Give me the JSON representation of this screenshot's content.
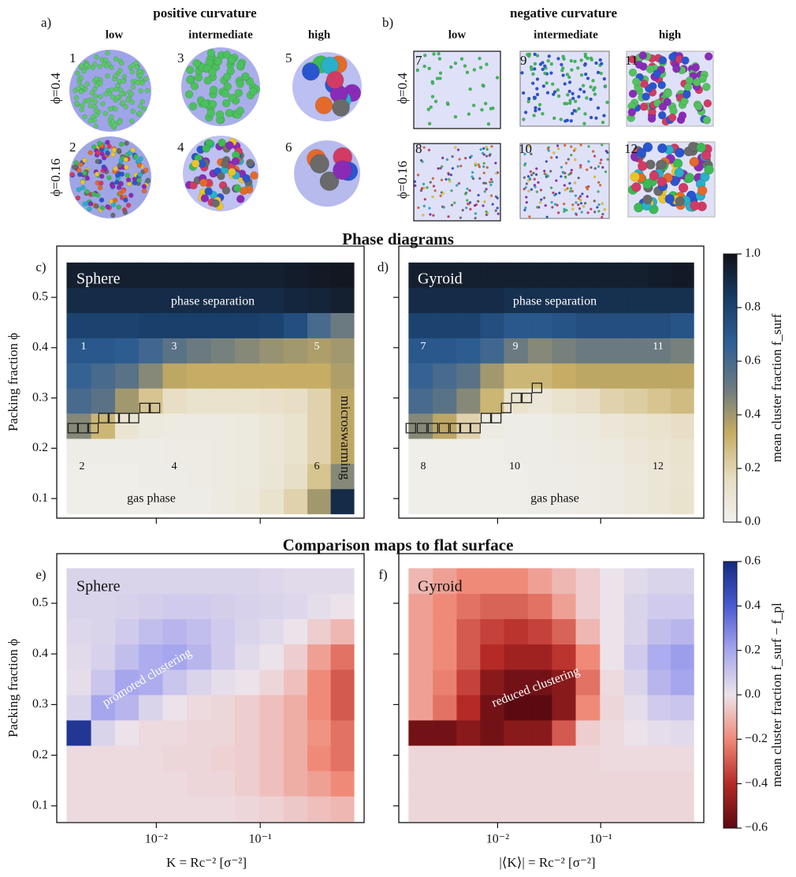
{
  "sections": [
    "Phase diagrams",
    "Comparison maps to flat surface"
  ],
  "illustrations": {
    "a": {
      "label": "a)",
      "title": "positive curvature",
      "columns": [
        "low",
        "intermediate",
        "high"
      ],
      "rows": [
        "ϕ=0.4",
        "ϕ=0.16"
      ],
      "numbers": [
        "1",
        "2",
        "3",
        "4",
        "5",
        "6"
      ]
    },
    "b": {
      "label": "b)",
      "title": "negative curvature",
      "columns": [
        "low",
        "intermediate",
        "high"
      ],
      "rows": [
        "ϕ=0.4",
        "ϕ=0.16"
      ],
      "numbers": [
        "7",
        "8",
        "9",
        "10",
        "11",
        "12"
      ]
    }
  },
  "chart_data": [
    {
      "type": "heatmap",
      "panel": "c)",
      "xscale": "log",
      "xtick_labels": false,
      "annotations": [
        "Sphere",
        "phase separation",
        "1",
        "3",
        "5",
        "2",
        "4",
        "6",
        "gas phase",
        "microswarming"
      ],
      "ylabel": "Packing fraction ϕ",
      "xlim": [
        0.0011,
        1.0
      ],
      "ylim": [
        0.061,
        0.602
      ],
      "xticks": [
        {
          "value": 0.01,
          "label": "10⁻²"
        },
        {
          "value": 0.1,
          "label": "10⁻¹"
        }
      ],
      "yticks": [
        0.1,
        0.2,
        0.3,
        0.4,
        0.5
      ],
      "x": [
        0.0018,
        0.0031,
        0.0052,
        0.0089,
        0.015,
        0.026,
        0.044,
        0.075,
        0.13,
        0.22,
        0.37,
        0.62
      ],
      "y": [
        0.094,
        0.144,
        0.194,
        0.244,
        0.294,
        0.344,
        0.394,
        0.444,
        0.494,
        0.544
      ],
      "values": [
        [
          0.02,
          0.02,
          0.02,
          0.02,
          0.03,
          0.03,
          0.05,
          0.07,
          0.12,
          0.2,
          0.4,
          0.9
        ],
        [
          0.02,
          0.02,
          0.02,
          0.03,
          0.03,
          0.04,
          0.05,
          0.06,
          0.09,
          0.14,
          0.25,
          0.45
        ],
        [
          0.03,
          0.03,
          0.03,
          0.03,
          0.04,
          0.04,
          0.05,
          0.06,
          0.08,
          0.12,
          0.2,
          0.35
        ],
        [
          0.45,
          0.3,
          0.1,
          0.06,
          0.05,
          0.05,
          0.05,
          0.06,
          0.08,
          0.12,
          0.2,
          0.35
        ],
        [
          0.6,
          0.55,
          0.4,
          0.25,
          0.15,
          0.12,
          0.12,
          0.12,
          0.13,
          0.15,
          0.2,
          0.35
        ],
        [
          0.65,
          0.6,
          0.55,
          0.45,
          0.35,
          0.33,
          0.33,
          0.33,
          0.33,
          0.33,
          0.33,
          0.38
        ],
        [
          0.7,
          0.7,
          0.68,
          0.62,
          0.55,
          0.5,
          0.48,
          0.45,
          0.42,
          0.4,
          0.38,
          0.4
        ],
        [
          0.8,
          0.8,
          0.8,
          0.82,
          0.82,
          0.82,
          0.82,
          0.82,
          0.8,
          0.75,
          0.6,
          0.5
        ],
        [
          0.9,
          0.9,
          0.9,
          0.9,
          0.9,
          0.9,
          0.9,
          0.9,
          0.9,
          0.92,
          0.93,
          0.95
        ],
        [
          0.95,
          0.95,
          0.95,
          0.95,
          0.95,
          0.95,
          0.95,
          0.95,
          0.95,
          0.96,
          0.97,
          0.98
        ]
      ],
      "clim": [
        0,
        1
      ],
      "colormap": [
        "#f0f0ef",
        "#e6dcc0",
        "#c6ac62",
        "#6b7a80",
        "#2f5f95",
        "#173c66",
        "#121218"
      ],
      "boundary": {
        "x": [
          0.00157,
          0.00197,
          0.00248,
          0.0031,
          0.0039,
          0.0049,
          0.0061,
          0.0077,
          0.0097
        ],
        "y": [
          0.24,
          0.24,
          0.24,
          0.26,
          0.26,
          0.26,
          0.26,
          0.28,
          0.28
        ]
      },
      "colorbar": {
        "label": "mean cluster fraction f_surf",
        "ticks": [
          {
            "value": 0,
            "label": "0.0"
          },
          0.2,
          0.4,
          0.6,
          0.8,
          {
            "value": 1,
            "label": "1.0"
          }
        ]
      }
    },
    {
      "type": "heatmap",
      "panel": "d)",
      "xscale": "log",
      "xtick_labels": false,
      "ytick_labels": false,
      "annotations": [
        "Gyroid",
        "phase separation",
        "7",
        "9",
        "11",
        "8",
        "10",
        "12",
        "gas phase"
      ],
      "xlim": [
        0.0011,
        1.0
      ],
      "ylim": [
        0.061,
        0.602
      ],
      "xticks": [
        {
          "value": 0.01,
          "label": "10⁻²"
        },
        {
          "value": 0.1,
          "label": "10⁻¹"
        }
      ],
      "yticks": [
        0.1,
        0.2,
        0.3,
        0.4,
        0.5
      ],
      "x": [
        0.0018,
        0.0031,
        0.0052,
        0.0089,
        0.015,
        0.026,
        0.044,
        0.075,
        0.13,
        0.22,
        0.37,
        0.62
      ],
      "y": [
        0.094,
        0.144,
        0.194,
        0.244,
        0.294,
        0.344,
        0.394,
        0.444,
        0.494,
        0.544
      ],
      "values": [
        [
          0.02,
          0.02,
          0.02,
          0.02,
          0.02,
          0.03,
          0.03,
          0.04,
          0.05,
          0.07,
          0.09,
          0.12
        ],
        [
          0.02,
          0.02,
          0.02,
          0.02,
          0.02,
          0.03,
          0.03,
          0.04,
          0.05,
          0.07,
          0.09,
          0.11
        ],
        [
          0.02,
          0.02,
          0.02,
          0.02,
          0.03,
          0.03,
          0.04,
          0.05,
          0.06,
          0.08,
          0.1,
          0.12
        ],
        [
          0.45,
          0.35,
          0.2,
          0.05,
          0.03,
          0.03,
          0.05,
          0.06,
          0.08,
          0.1,
          0.12,
          0.15
        ],
        [
          0.6,
          0.55,
          0.45,
          0.3,
          0.12,
          0.08,
          0.12,
          0.15,
          0.2,
          0.22,
          0.25,
          0.28
        ],
        [
          0.65,
          0.6,
          0.55,
          0.4,
          0.3,
          0.3,
          0.33,
          0.35,
          0.35,
          0.35,
          0.35,
          0.35
        ],
        [
          0.7,
          0.7,
          0.68,
          0.62,
          0.5,
          0.45,
          0.48,
          0.5,
          0.5,
          0.5,
          0.5,
          0.48
        ],
        [
          0.8,
          0.8,
          0.8,
          0.75,
          0.7,
          0.7,
          0.72,
          0.75,
          0.75,
          0.75,
          0.75,
          0.72
        ],
        [
          0.9,
          0.9,
          0.9,
          0.9,
          0.88,
          0.88,
          0.88,
          0.88,
          0.88,
          0.88,
          0.88,
          0.88
        ],
        [
          0.95,
          0.95,
          0.95,
          0.95,
          0.95,
          0.95,
          0.95,
          0.95,
          0.95,
          0.95,
          0.96,
          0.97
        ]
      ],
      "clim": [
        0,
        1
      ],
      "colormap": [
        "#f0f0ef",
        "#e6dcc0",
        "#c6ac62",
        "#6b7a80",
        "#2f5f95",
        "#173c66",
        "#121218"
      ],
      "boundary": {
        "x": [
          0.00144,
          0.00185,
          0.00236,
          0.00302,
          0.00386,
          0.00486,
          0.0061,
          0.0077,
          0.0097,
          0.0121,
          0.0152,
          0.0192,
          0.0241
        ],
        "y": [
          0.24,
          0.24,
          0.24,
          0.24,
          0.24,
          0.24,
          0.24,
          0.26,
          0.26,
          0.28,
          0.3,
          0.3,
          0.32
        ]
      }
    },
    {
      "type": "heatmap",
      "panel": "e)",
      "xscale": "log",
      "annotations": [
        "Sphere",
        "promoted clustering"
      ],
      "ylabel": "Packing fraction ϕ",
      "xlabel": "K = Rc⁻² [σ⁻²]",
      "xlim": [
        0.0011,
        1.0
      ],
      "ylim": [
        0.067,
        0.598
      ],
      "xticks": [
        {
          "value": 0.01,
          "label": "10⁻²"
        },
        {
          "value": 0.1,
          "label": "10⁻¹"
        }
      ],
      "yticks": [
        0.1,
        0.2,
        0.3,
        0.4,
        0.5
      ],
      "x": [
        0.0018,
        0.0031,
        0.0052,
        0.0089,
        0.015,
        0.026,
        0.044,
        0.075,
        0.13,
        0.22,
        0.37,
        0.62
      ],
      "y": [
        0.094,
        0.144,
        0.194,
        0.244,
        0.294,
        0.344,
        0.394,
        0.444,
        0.494,
        0.544
      ],
      "values": [
        [
          -0.02,
          -0.02,
          -0.02,
          -0.02,
          -0.02,
          -0.02,
          -0.02,
          -0.03,
          -0.04,
          -0.06,
          -0.08,
          -0.1
        ],
        [
          -0.02,
          -0.02,
          -0.02,
          -0.02,
          -0.02,
          -0.03,
          -0.03,
          -0.05,
          -0.08,
          -0.12,
          -0.15,
          -0.2
        ],
        [
          -0.02,
          -0.02,
          -0.02,
          -0.02,
          -0.03,
          -0.03,
          -0.04,
          -0.05,
          -0.08,
          -0.12,
          -0.2,
          -0.25
        ],
        [
          0.55,
          0.05,
          0.0,
          -0.02,
          -0.02,
          -0.03,
          -0.03,
          -0.05,
          -0.08,
          -0.12,
          -0.18,
          -0.25
        ],
        [
          0.05,
          0.2,
          0.15,
          0.05,
          0.0,
          -0.02,
          -0.03,
          -0.05,
          -0.08,
          -0.12,
          -0.2,
          -0.3
        ],
        [
          0.02,
          0.1,
          0.2,
          0.18,
          0.1,
          0.05,
          0.02,
          0.0,
          -0.03,
          -0.08,
          -0.2,
          -0.3
        ],
        [
          0.03,
          0.06,
          0.12,
          0.18,
          0.2,
          0.15,
          0.08,
          0.03,
          0.0,
          -0.05,
          -0.15,
          -0.25
        ],
        [
          0.04,
          0.05,
          0.08,
          0.12,
          0.15,
          0.12,
          0.08,
          0.05,
          0.03,
          0.0,
          -0.05,
          -0.1
        ],
        [
          0.05,
          0.05,
          0.06,
          0.07,
          0.08,
          0.08,
          0.07,
          0.06,
          0.05,
          0.04,
          0.02,
          0.0
        ],
        [
          0.05,
          0.05,
          0.05,
          0.05,
          0.05,
          0.05,
          0.05,
          0.05,
          0.04,
          0.03,
          0.03,
          0.03
        ]
      ],
      "clim": [
        -0.6,
        0.6
      ],
      "colormap": [
        "#5c0a12",
        "#b52a26",
        "#f08a78",
        "#ece3ea",
        "#a6a6ee",
        "#4a5ad0",
        "#142a80"
      ],
      "colorbar": {
        "label": "mean cluster fraction f_surf − f_pl",
        "ticks": [
          {
            "value": -0.6,
            "label": "−0.6"
          },
          {
            "value": -0.4,
            "label": "−0.4"
          },
          {
            "value": -0.2,
            "label": "−0.2"
          },
          {
            "value": 0,
            "label": "0.0"
          },
          0.2,
          0.4,
          0.6
        ]
      }
    },
    {
      "type": "heatmap",
      "panel": "f)",
      "xscale": "log",
      "ytick_labels": false,
      "annotations": [
        "Gyroid",
        "reduced clustering"
      ],
      "xlabel": "|⟨K⟩| = Rc⁻² [σ⁻²]",
      "xlim": [
        0.0011,
        1.0
      ],
      "ylim": [
        0.067,
        0.598
      ],
      "xticks": [
        {
          "value": 0.01,
          "label": "10⁻²"
        },
        {
          "value": 0.1,
          "label": "10⁻¹"
        }
      ],
      "yticks": [
        0.1,
        0.2,
        0.3,
        0.4,
        0.5
      ],
      "x": [
        0.0018,
        0.0031,
        0.0052,
        0.0089,
        0.015,
        0.026,
        0.044,
        0.075,
        0.13,
        0.22,
        0.37,
        0.62
      ],
      "y": [
        0.094,
        0.144,
        0.194,
        0.244,
        0.294,
        0.344,
        0.394,
        0.444,
        0.494,
        0.544
      ],
      "values": [
        [
          -0.03,
          -0.03,
          -0.03,
          -0.03,
          -0.03,
          -0.03,
          -0.03,
          -0.03,
          -0.03,
          -0.03,
          -0.03,
          -0.03
        ],
        [
          -0.03,
          -0.03,
          -0.03,
          -0.03,
          -0.03,
          -0.03,
          -0.03,
          -0.03,
          -0.03,
          -0.03,
          -0.03,
          -0.03
        ],
        [
          -0.03,
          -0.03,
          -0.03,
          -0.03,
          -0.03,
          -0.03,
          -0.03,
          -0.03,
          -0.02,
          -0.02,
          -0.02,
          -0.02
        ],
        [
          -0.55,
          -0.55,
          -0.5,
          -0.55,
          -0.5,
          -0.5,
          -0.3,
          -0.05,
          -0.02,
          0.0,
          0.02,
          0.03
        ],
        [
          -0.15,
          -0.25,
          -0.4,
          -0.55,
          -0.6,
          -0.6,
          -0.5,
          -0.2,
          -0.03,
          0.02,
          0.08,
          0.1
        ],
        [
          -0.15,
          -0.22,
          -0.35,
          -0.5,
          -0.55,
          -0.55,
          -0.5,
          -0.25,
          -0.02,
          0.05,
          0.15,
          0.2
        ],
        [
          -0.15,
          -0.2,
          -0.3,
          -0.4,
          -0.45,
          -0.45,
          -0.38,
          -0.2,
          0.0,
          0.08,
          0.18,
          0.22
        ],
        [
          -0.15,
          -0.2,
          -0.3,
          -0.35,
          -0.38,
          -0.35,
          -0.28,
          -0.1,
          0.0,
          0.05,
          0.12,
          0.15
        ],
        [
          -0.15,
          -0.2,
          -0.25,
          -0.28,
          -0.28,
          -0.25,
          -0.15,
          -0.05,
          0.0,
          0.05,
          0.08,
          0.08
        ],
        [
          -0.1,
          -0.15,
          -0.2,
          -0.2,
          -0.2,
          -0.15,
          -0.1,
          -0.05,
          0.0,
          0.03,
          0.05,
          0.05
        ]
      ],
      "clim": [
        -0.6,
        0.6
      ],
      "colormap": [
        "#5c0a12",
        "#b52a26",
        "#f08a78",
        "#ece3ea",
        "#a6a6ee",
        "#4a5ad0",
        "#142a80"
      ]
    }
  ]
}
